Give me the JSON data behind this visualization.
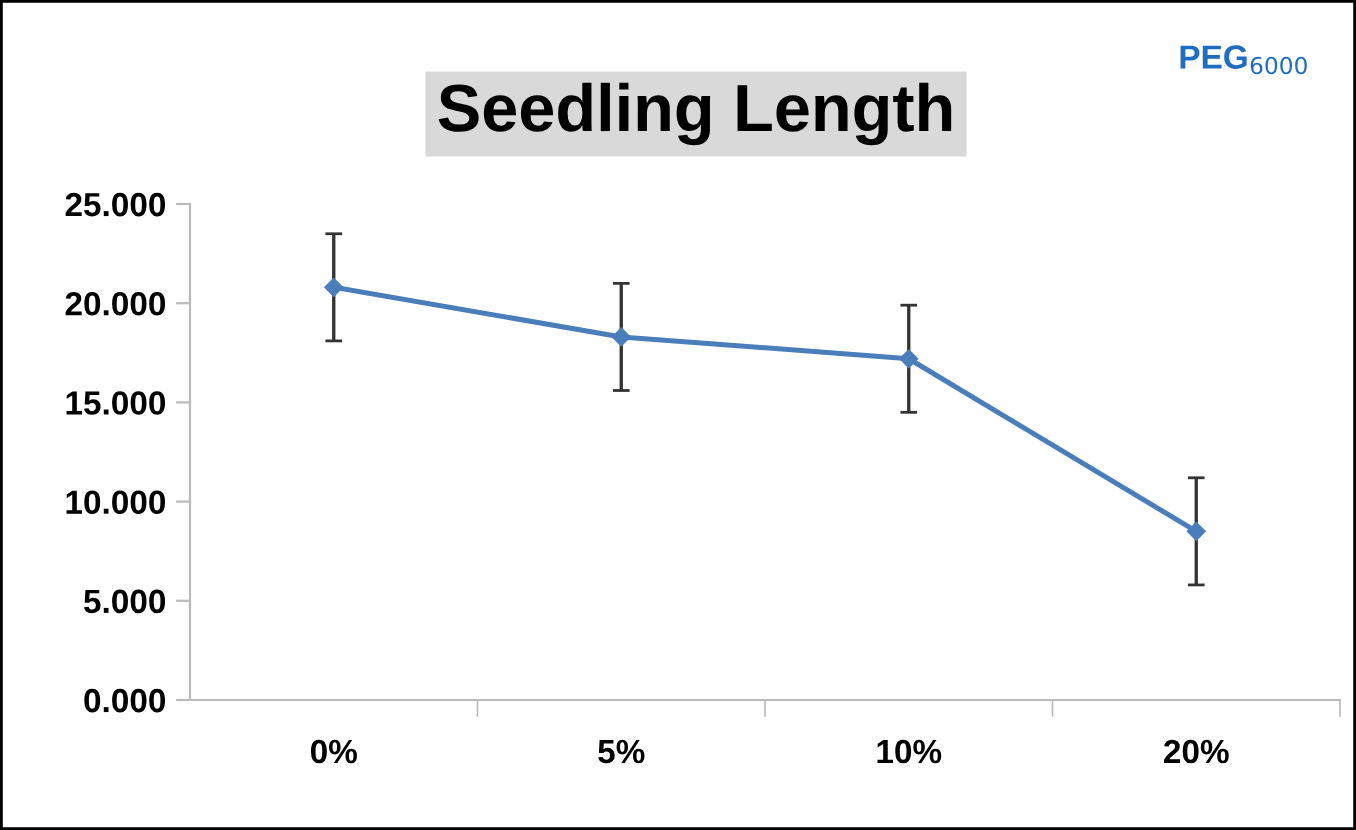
{
  "chart_data": {
    "type": "line",
    "title": "Seedling Length",
    "annotations": [
      "PEG$_{6000}$"
    ],
    "categories": [
      "0%",
      "5%",
      "10%",
      "20%"
    ],
    "series": [
      {
        "color": "#4a7ebb",
        "values": [
          20.8,
          18.3,
          17.2,
          8.5
        ],
        "errors": [
          2.7,
          2.7,
          2.7,
          2.7
        ]
      }
    ],
    "ylim": [
      0,
      25
    ],
    "yticks": [
      {
        "value": 0,
        "label": "0.000"
      },
      {
        "value": 5,
        "label": "5.000"
      },
      {
        "value": 10,
        "label": "10.000"
      },
      {
        "value": 15,
        "label": "15.000"
      },
      {
        "value": 20,
        "label": "20.000"
      },
      {
        "value": 25,
        "label": "25.000"
      }
    ],
    "marker": "diamond",
    "grid": false,
    "legend": false
  }
}
